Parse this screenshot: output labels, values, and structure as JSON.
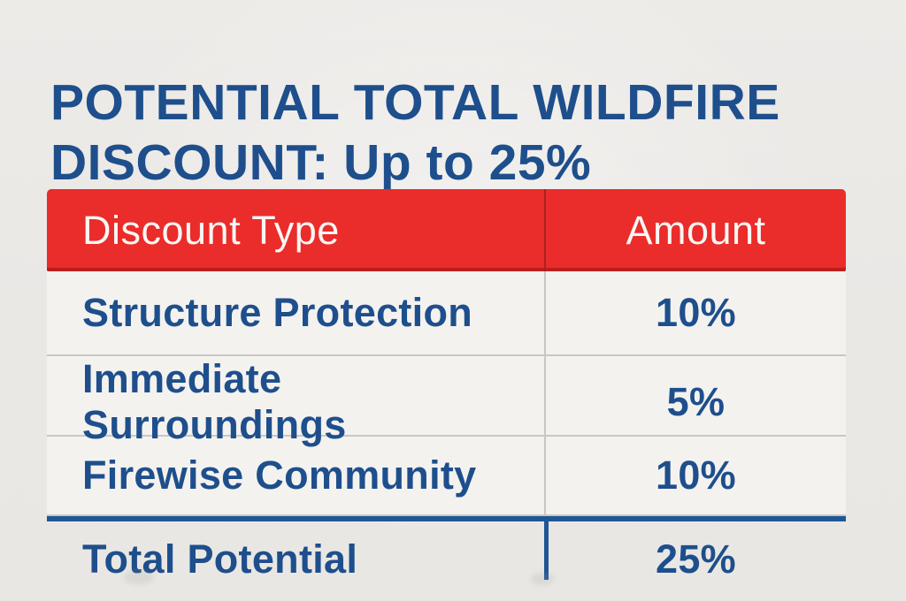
{
  "page": {
    "title_line1": "POTENTIAL TOTAL WILDFIRE",
    "title_line2": "DISCOUNT: Up to 25%"
  },
  "colors": {
    "title_navy": "#1e4f8c",
    "header_red": "#ea2c2b",
    "header_text_white": "#f9f6f3",
    "cell_background": "#f4f2ef",
    "page_background": "#ebe9e6",
    "divider_gray": "#c9c7c4",
    "header_divider_dark_red": "#a8221f",
    "total_rule_blue": "#1f5795"
  },
  "table": {
    "headers": {
      "type": "Discount Type",
      "amount": "Amount"
    },
    "rows": [
      {
        "type": "Structure Protection",
        "amount": "10%"
      },
      {
        "type": "Immediate Surroundings",
        "amount": "5%"
      },
      {
        "type": "Firewise Community",
        "amount": "10%"
      }
    ],
    "total": {
      "type": "Total Potential",
      "amount": "25%"
    }
  }
}
